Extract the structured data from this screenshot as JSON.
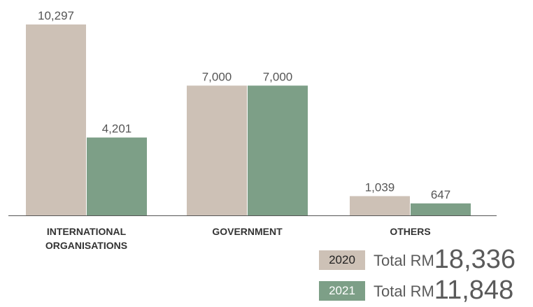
{
  "chart_data": {
    "type": "bar",
    "categories": [
      [
        "INTERNATIONAL",
        "ORGANISATIONS"
      ],
      [
        "GOVERNMENT"
      ],
      [
        "OTHERS"
      ]
    ],
    "series": [
      {
        "name": "2020",
        "values": [
          10297,
          7000,
          1039
        ],
        "labels": [
          "10,297",
          "7,000",
          "1,039"
        ],
        "color": "#cdc1b6"
      },
      {
        "name": "2021",
        "values": [
          4201,
          7000,
          647
        ],
        "labels": [
          "4,201",
          "7,000",
          "647"
        ],
        "color": "#7d9f87"
      }
    ],
    "ylim": [
      0,
      10297
    ],
    "grid": false,
    "legend_position": "bottom-right"
  },
  "legend": [
    {
      "year": "2020",
      "text": "Total RM",
      "amount": "18,336",
      "swatch_color": "#cdc1b6",
      "year_color": "#222222"
    },
    {
      "year": "2021",
      "text": "Total RM",
      "amount": "11,848",
      "swatch_color": "#7d9f87",
      "year_color": "#ffffff"
    }
  ]
}
